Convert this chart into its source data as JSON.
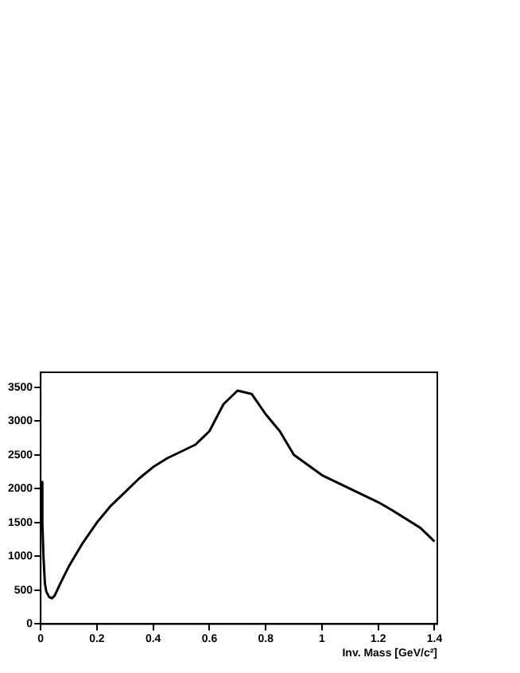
{
  "chart_data": {
    "type": "line",
    "xlabel": "Inv. Mass [GeV/c²]",
    "x": [
      0.003,
      0.006,
      0.01,
      0.015,
      0.02,
      0.03,
      0.04,
      0.05,
      0.07,
      0.1,
      0.15,
      0.2,
      0.25,
      0.3,
      0.35,
      0.4,
      0.45,
      0.5,
      0.55,
      0.6,
      0.65,
      0.7,
      0.75,
      0.8,
      0.85,
      0.9,
      0.95,
      1.0,
      1.05,
      1.1,
      1.15,
      1.2,
      1.25,
      1.3,
      1.35,
      1.4
    ],
    "series": [
      {
        "color": "#000000",
        "values": [
          2100,
          1500,
          1000,
          600,
          480,
          400,
          380,
          420,
          600,
          850,
          1200,
          1500,
          1750,
          1950,
          2150,
          2320,
          2450,
          2550,
          2650,
          2850,
          3250,
          3450,
          3400,
          3100,
          2850,
          2500,
          2350,
          2200,
          2100,
          2000,
          1900,
          1800,
          1680,
          1550,
          1420,
          1220
        ]
      }
    ],
    "xlim": [
      0,
      1.41
    ],
    "ylim": [
      0,
      3720
    ],
    "xticks": [
      0,
      0.2,
      0.4,
      0.6,
      0.8,
      1,
      1.2,
      1.4
    ],
    "yticks": [
      0,
      500,
      1000,
      1500,
      2000,
      2500,
      3000,
      3500
    ],
    "grid": false,
    "legend": false,
    "marker": "none",
    "line_style": "solid"
  }
}
